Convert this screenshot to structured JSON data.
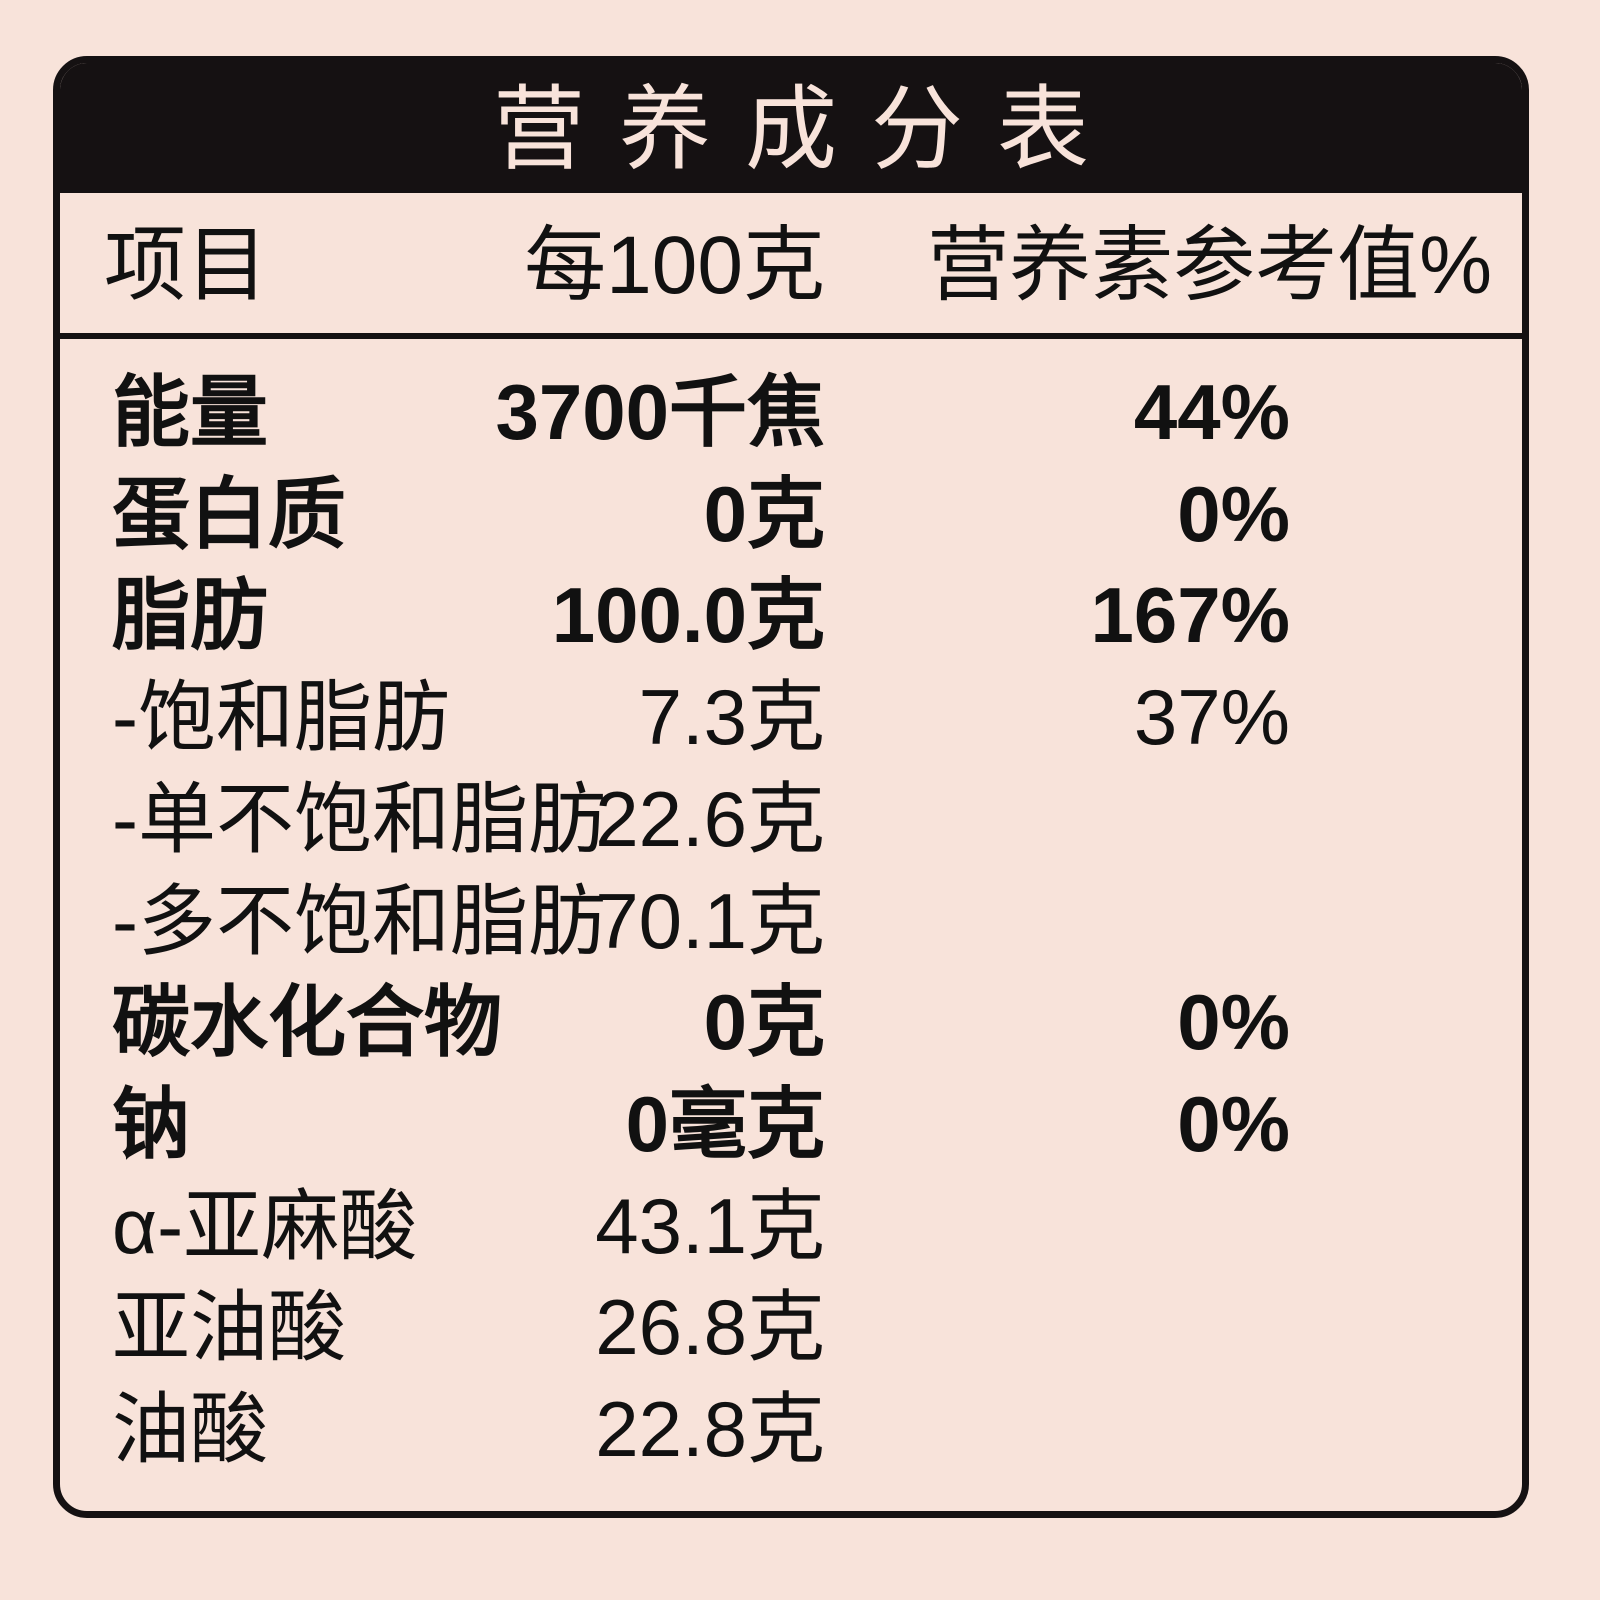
{
  "title": "营养成分表",
  "header": {
    "item": "项目",
    "per100g": "每100克",
    "nrv": "营养素参考值%"
  },
  "rows": [
    {
      "name": "能量",
      "value": "3700千焦",
      "nrv": "44%",
      "bold": true
    },
    {
      "name": "蛋白质",
      "value": "0克",
      "nrv": "0%",
      "bold": true
    },
    {
      "name": "脂肪",
      "value": "100.0克",
      "nrv": "167%",
      "bold": true
    },
    {
      "name": "-饱和脂肪",
      "value": "7.3克",
      "nrv": "37%",
      "bold": false
    },
    {
      "name": "-单不饱和脂肪",
      "value": "22.6克",
      "nrv": "",
      "bold": false
    },
    {
      "name": "-多不饱和脂肪",
      "value": "70.1克",
      "nrv": "",
      "bold": false
    },
    {
      "name": "碳水化合物",
      "value": "0克",
      "nrv": "0%",
      "bold": true
    },
    {
      "name": "钠",
      "value": "0毫克",
      "nrv": "0%",
      "bold": true
    },
    {
      "name": "α-亚麻酸",
      "value": "43.1克",
      "nrv": "",
      "bold": false
    },
    {
      "name": "亚油酸",
      "value": "26.8克",
      "nrv": "",
      "bold": false
    },
    {
      "name": "油酸",
      "value": "22.8克",
      "nrv": "",
      "bold": false
    }
  ],
  "colors": {
    "background": "#f8e3da",
    "ink": "#151112"
  }
}
